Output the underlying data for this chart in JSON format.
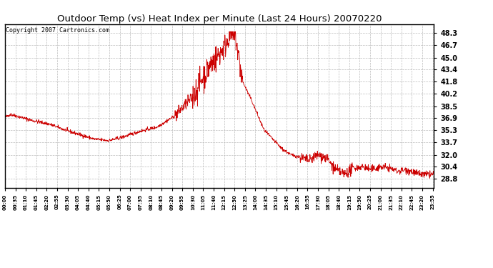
{
  "title": "Outdoor Temp (vs) Heat Index per Minute (Last 24 Hours) 20070220",
  "copyright": "Copyright 2007 Cartronics.com",
  "line_color": "#cc0000",
  "background_color": "#ffffff",
  "grid_color": "#bbbbbb",
  "yticks": [
    28.8,
    30.4,
    32.0,
    33.7,
    35.3,
    36.9,
    38.5,
    40.2,
    41.8,
    43.4,
    45.0,
    46.7,
    48.3
  ],
  "ylim": [
    27.6,
    49.5
  ],
  "num_points": 1440,
  "x_tick_interval": 35,
  "figsize": [
    6.9,
    3.75
  ],
  "dpi": 100
}
